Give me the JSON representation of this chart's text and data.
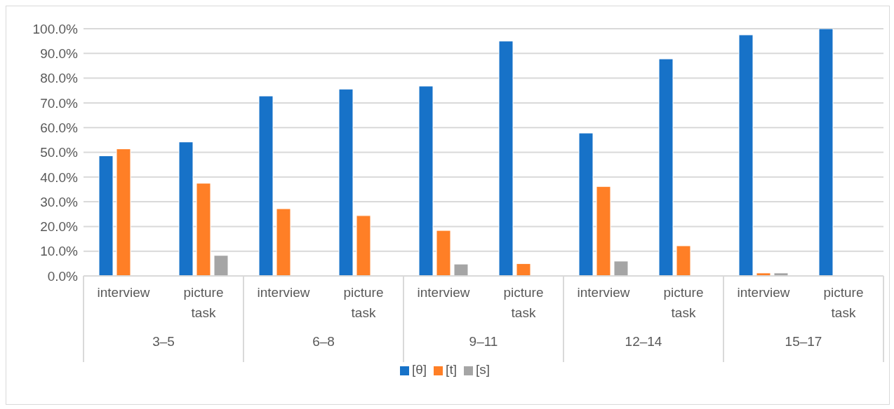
{
  "chart_data": {
    "type": "bar",
    "categories": [
      "interview",
      "picture task",
      "interview",
      "picture task",
      "interview",
      "picture task",
      "interview",
      "picture task",
      "interview",
      "picture task"
    ],
    "annotations": [
      "3–5",
      "6–8",
      "9–11",
      "12–14",
      "15–17"
    ],
    "series": [
      {
        "name": "[θ]",
        "color": "#1772c8",
        "values": [
          48.6,
          54.2,
          72.8,
          75.6,
          76.8,
          95.0,
          57.8,
          87.8,
          97.5,
          100.0
        ]
      },
      {
        "name": "[t]",
        "color": "#ff7f26",
        "values": [
          51.4,
          37.5,
          27.2,
          24.4,
          18.4,
          5.0,
          36.2,
          12.2,
          1.2,
          0
        ]
      },
      {
        "name": "[s]",
        "color": "#a5a5a5",
        "values": [
          0,
          8.3,
          0,
          0,
          4.8,
          0,
          6.0,
          0,
          1.2,
          0
        ]
      }
    ],
    "ylim": [
      0,
      100
    ],
    "yticks": [
      {
        "value": 0,
        "label": "0.0%"
      },
      {
        "value": 10,
        "label": "10.0%"
      },
      {
        "value": 20,
        "label": "20.0%"
      },
      {
        "value": 30,
        "label": "30.0%"
      },
      {
        "value": 40,
        "label": "40.0%"
      },
      {
        "value": 50,
        "label": "50.0%"
      },
      {
        "value": 60,
        "label": "60.0%"
      },
      {
        "value": 70,
        "label": "70.0%"
      },
      {
        "value": 80,
        "label": "80.0%"
      },
      {
        "value": 90,
        "label": "90.0%"
      },
      {
        "value": 100,
        "label": "100.0%"
      }
    ],
    "grid": "y",
    "legend": "bottom"
  }
}
